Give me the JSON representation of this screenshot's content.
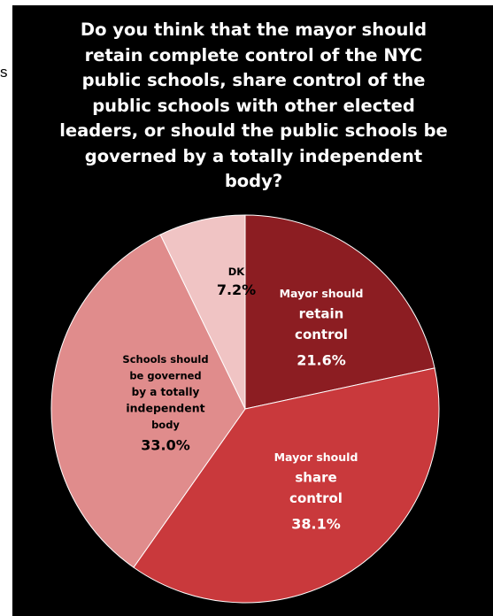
{
  "edge_text": "s",
  "chart_data": {
    "type": "pie",
    "title": "Do you think that the mayor should retain complete control of the NYC public schools, share control of the public schools with other elected leaders, or should the public schools be governed by a totally independent body?",
    "slices": [
      {
        "label": "Mayor should retain control",
        "value": 21.6,
        "value_label": "21.6%",
        "color": "#8c1d22"
      },
      {
        "label": "Mayor should share control",
        "value": 38.1,
        "value_label": "38.1%",
        "color": "#c9393c"
      },
      {
        "label": "Schools should be governed by a totally independent body",
        "value": 33.0,
        "value_label": "33.0%",
        "color": "#e08c8c"
      },
      {
        "label": "DK",
        "value": 7.2,
        "value_label": "7.2%",
        "color": "#f0c4c4"
      }
    ]
  }
}
